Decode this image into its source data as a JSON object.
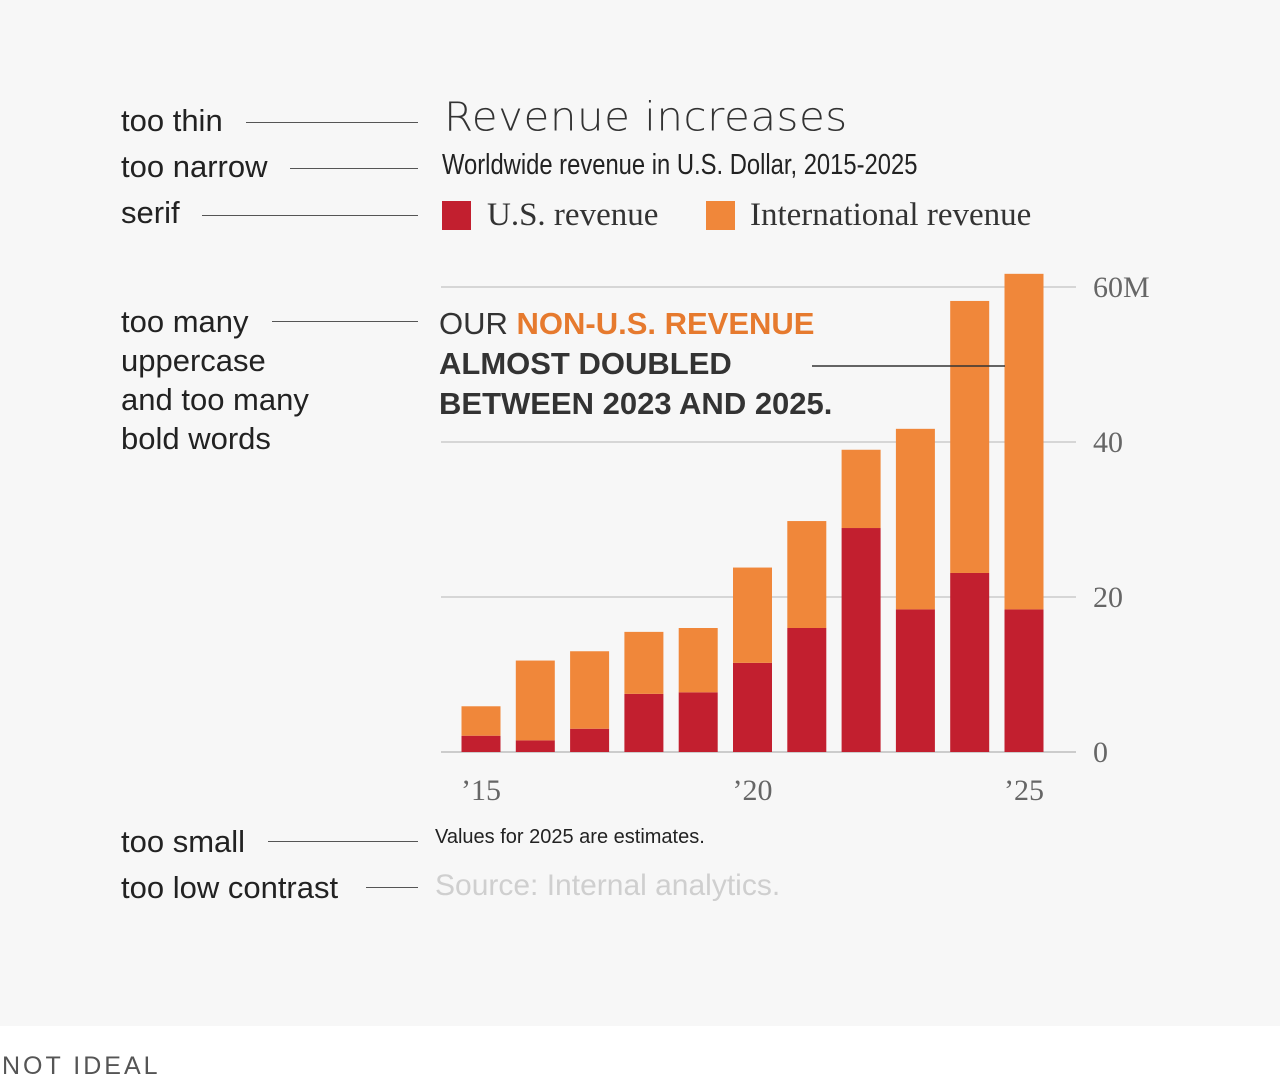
{
  "annotations": [
    {
      "text": "too thin"
    },
    {
      "text": "too narrow"
    },
    {
      "text": "serif"
    },
    {
      "text": "too many\nuppercase\nand too many\nbold words"
    },
    {
      "text": "too small"
    },
    {
      "text": "too low contrast"
    }
  ],
  "callout": {
    "part1": "OUR ",
    "part2": "NON-U.S. REVENUE",
    "part3": "ALMOST DOUBLED",
    "part4": "BETWEEN 2023 AND 2025."
  },
  "note": "Values for 2025 are estimates.",
  "source": "Source: Internal analytics.",
  "verdict": "NOT IDEAL",
  "colors": {
    "us": "#c21f2f",
    "intl": "#f0873a",
    "grid": "#d6d6d6",
    "highlight": "#e67a2e"
  },
  "chart_data": {
    "type": "bar",
    "stacked": true,
    "title": "Revenue increases",
    "subtitle": "Worldwide revenue in U.S. Dollar, 2015-2025",
    "categories": [
      "2015",
      "2016",
      "2017",
      "2018",
      "2019",
      "2020",
      "2021",
      "2022",
      "2023",
      "2024",
      "2025"
    ],
    "series": [
      {
        "name": "U.S. revenue",
        "values": [
          2.1,
          1.5,
          3.0,
          7.5,
          7.7,
          11.5,
          16.0,
          28.9,
          18.4,
          23.1,
          18.4
        ]
      },
      {
        "name": "International revenue",
        "values": [
          3.8,
          10.3,
          10.0,
          8.0,
          8.3,
          12.3,
          13.8,
          10.1,
          23.3,
          35.1,
          43.3
        ]
      }
    ],
    "x_tick_labels": [
      {
        "category": "2015",
        "label": "’15"
      },
      {
        "category": "2020",
        "label": "’20"
      },
      {
        "category": "2025",
        "label": "’25"
      }
    ],
    "y_ticks": [
      {
        "value": 0,
        "label": "0"
      },
      {
        "value": 20,
        "label": "20"
      },
      {
        "value": 40,
        "label": "40"
      },
      {
        "value": 60,
        "label": "60M"
      }
    ],
    "ylim": [
      0,
      60
    ],
    "grid": true,
    "legend_position": "top",
    "y_axis_position": "right"
  }
}
